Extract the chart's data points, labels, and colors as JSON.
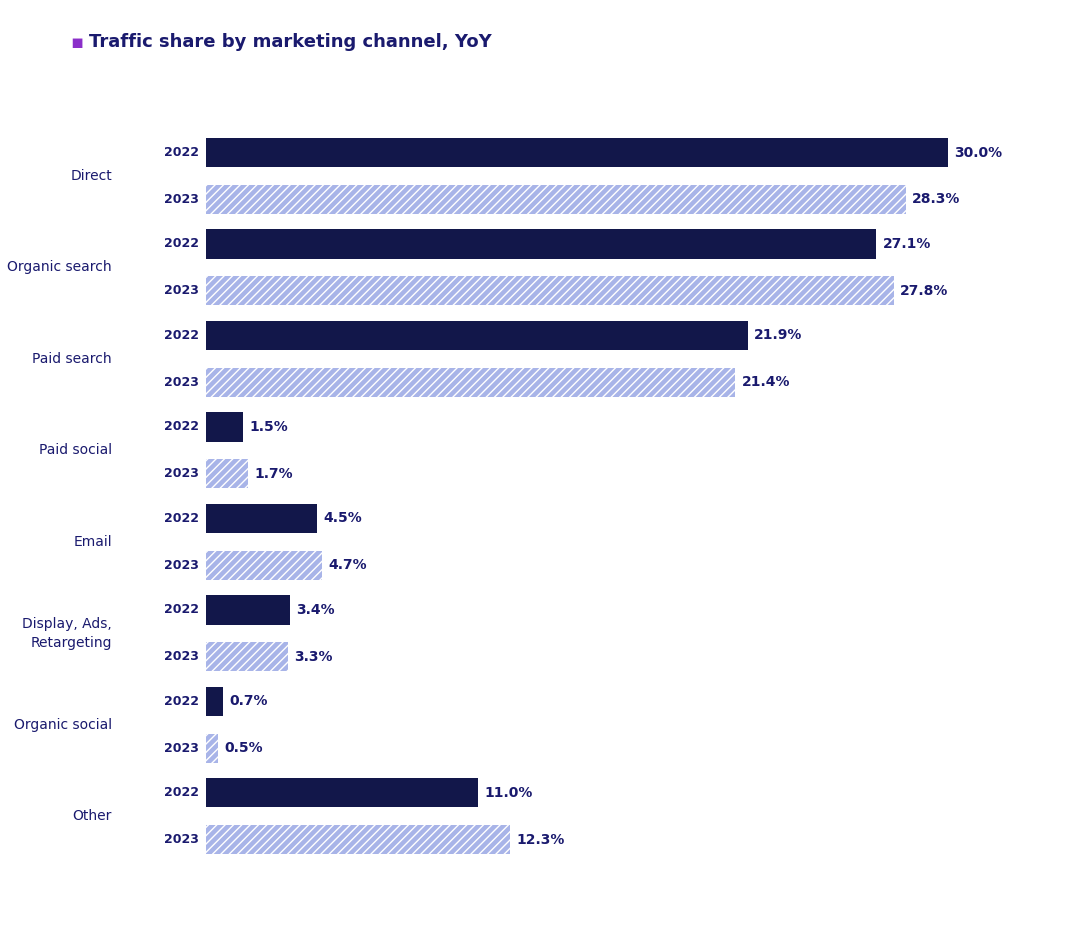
{
  "title": "Traffic share by marketing channel, YoY",
  "title_color": "#1a1a6e",
  "title_marker_color": "#8b2fc9",
  "background_color": "#ffffff",
  "categories": [
    "Direct",
    "Organic search",
    "Paid search",
    "Paid social",
    "Email",
    "Display, Ads,\nRetargeting",
    "Organic social",
    "Other"
  ],
  "values_2022": [
    30.0,
    27.1,
    21.9,
    1.5,
    4.5,
    3.4,
    0.7,
    11.0
  ],
  "values_2023": [
    28.3,
    27.8,
    21.4,
    1.7,
    4.7,
    3.3,
    0.5,
    12.3
  ],
  "color_2022": "#12174a",
  "color_2023": "#a8b4e8",
  "label_color": "#1a1a6e",
  "year_label_color": "#1a1a6e",
  "xlim_max": 33,
  "bar_height": 0.32,
  "hatch_pattern": "////",
  "hatch_color": "white",
  "value_fontsize": 10,
  "year_fontsize": 9,
  "category_fontsize": 10,
  "title_fontsize": 13
}
